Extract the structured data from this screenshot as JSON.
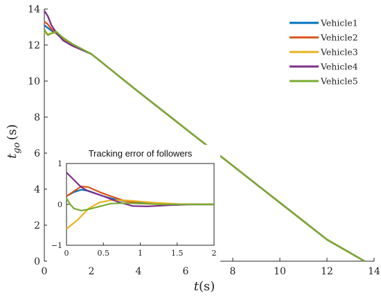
{
  "chart_data": [
    {
      "type": "line",
      "xlabel_main": "t",
      "xlabel_unit": "(s)",
      "ylabel_main": "t",
      "ylabel_sub": "go",
      "ylabel_unit": "(s)",
      "xlim": [
        0,
        14
      ],
      "ylim": [
        0,
        14
      ],
      "xticks": [
        0,
        2,
        4,
        6,
        8,
        10,
        12,
        14
      ],
      "yticks": [
        0,
        2,
        4,
        6,
        8,
        10,
        12,
        14
      ],
      "grid": false,
      "legend_position": "top-right",
      "series": [
        {
          "name": "Vehicle1",
          "color": "#0072BD",
          "x": [
            0,
            0.15,
            0.3,
            0.5,
            0.8,
            1.2,
            2,
            4,
            6,
            8,
            10,
            12,
            13.6
          ],
          "y": [
            13.1,
            12.95,
            12.8,
            12.65,
            12.3,
            12.0,
            11.5,
            9.4,
            7.35,
            5.3,
            3.25,
            1.2,
            0
          ]
        },
        {
          "name": "Vehicle2",
          "color": "#D95319",
          "x": [
            0,
            0.15,
            0.3,
            0.5,
            0.8,
            1.2,
            2,
            4,
            6,
            8,
            10,
            12,
            13.6
          ],
          "y": [
            13.3,
            13.15,
            12.9,
            12.65,
            12.35,
            12.0,
            11.5,
            9.4,
            7.35,
            5.3,
            3.25,
            1.2,
            0
          ]
        },
        {
          "name": "Vehicle3",
          "color": "#EDB120",
          "x": [
            0,
            0.15,
            0.3,
            0.5,
            0.8,
            1.2,
            2,
            4,
            6,
            8,
            10,
            12,
            13.6
          ],
          "y": [
            12.7,
            12.6,
            12.65,
            12.7,
            12.4,
            12.0,
            11.5,
            9.4,
            7.35,
            5.3,
            3.25,
            1.2,
            0
          ]
        },
        {
          "name": "Vehicle4",
          "color": "#7E2F8E",
          "x": [
            0,
            0.15,
            0.3,
            0.5,
            0.8,
            1.2,
            2,
            4,
            6,
            8,
            10,
            12,
            13.6
          ],
          "y": [
            13.9,
            13.6,
            13.1,
            12.7,
            12.25,
            11.95,
            11.5,
            9.4,
            7.35,
            5.3,
            3.25,
            1.2,
            0
          ]
        },
        {
          "name": "Vehicle5",
          "color": "#77AC30",
          "x": [
            0,
            0.15,
            0.3,
            0.5,
            0.8,
            1.2,
            2,
            4,
            6,
            8,
            10,
            12,
            13.6
          ],
          "y": [
            12.85,
            12.55,
            12.65,
            12.75,
            12.4,
            12.05,
            11.5,
            9.4,
            7.35,
            5.3,
            3.25,
            1.2,
            0
          ]
        }
      ]
    },
    {
      "type": "line",
      "title": "Tracking error of followers",
      "xlim": [
        0,
        2
      ],
      "ylim": [
        -1,
        1
      ],
      "xticks": [
        "0",
        "0.5",
        "1",
        "1.5",
        "2"
      ],
      "yticks": [
        "1",
        "0",
        "−1"
      ],
      "grid": false,
      "series": [
        {
          "color": "#0072BD",
          "x": [
            0,
            0.1,
            0.2,
            0.3,
            0.5,
            0.7,
            1.0,
            1.3,
            1.6,
            2.0
          ],
          "y": [
            0.2,
            0.3,
            0.36,
            0.33,
            0.2,
            0.1,
            0.04,
            0.02,
            0.0,
            0.0
          ]
        },
        {
          "color": "#D95319",
          "x": [
            0,
            0.1,
            0.2,
            0.3,
            0.45,
            0.6,
            0.8,
            1.0,
            1.3,
            1.6,
            2.0
          ],
          "y": [
            0.2,
            0.32,
            0.44,
            0.42,
            0.3,
            0.2,
            0.08,
            0.02,
            0.01,
            0.0,
            0.0
          ]
        },
        {
          "color": "#EDB120",
          "x": [
            0,
            0.15,
            0.3,
            0.45,
            0.6,
            0.8,
            1.0,
            1.2,
            1.5,
            2.0
          ],
          "y": [
            -0.6,
            -0.38,
            -0.1,
            0.05,
            0.1,
            0.1,
            0.07,
            0.04,
            0.01,
            0.0
          ]
        },
        {
          "color": "#7E2F8E",
          "x": [
            0,
            0.1,
            0.2,
            0.3,
            0.5,
            0.7,
            0.9,
            1.1,
            1.4,
            1.7,
            2.0
          ],
          "y": [
            0.78,
            0.6,
            0.42,
            0.32,
            0.2,
            0.06,
            -0.04,
            -0.05,
            -0.02,
            0.0,
            0.0
          ]
        },
        {
          "color": "#77AC30",
          "x": [
            0,
            0.05,
            0.1,
            0.2,
            0.3,
            0.45,
            0.6,
            0.8,
            1.0,
            1.3,
            1.6,
            2.0
          ],
          "y": [
            0.15,
            0.0,
            -0.1,
            -0.15,
            -0.12,
            -0.05,
            0.02,
            0.03,
            0.02,
            0.0,
            0.0,
            0.0
          ]
        }
      ]
    }
  ]
}
